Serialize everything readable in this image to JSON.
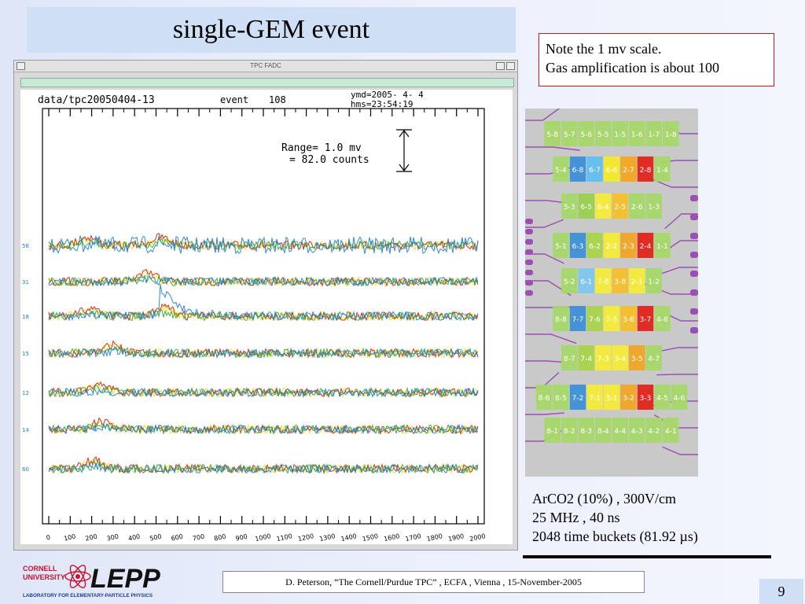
{
  "slide": {
    "title": "single-GEM event",
    "note_lines": [
      "Note the 1 mv scale.",
      "Gas amplification is about 100"
    ],
    "params_lines": [
      "ArCO2 (10%) , 300V/cm",
      "25 MHz , 40 ns",
      "2048 time buckets  (81.92 µs)"
    ],
    "footer": "D. Peterson,  “The Cornell/Purdue TPC” ,  ECFA , Vienna , 15-November-2005",
    "page_number": "9",
    "logo": {
      "top": "CORNELL",
      "mid": "UNIVERSITY",
      "brand": "LEPP",
      "sub": "LABORATORY FOR ELEMENTARY-PARTICLE PHYSICS"
    }
  },
  "window": {
    "title": "TPC FADC"
  },
  "chart_data": {
    "type": "line",
    "header": {
      "file": "data/tpc20050404-13",
      "event_label": "event",
      "event_number": "108",
      "ymd": "ymd=2005- 4- 4",
      "hms": "hms=23:54:19"
    },
    "range_annotation": [
      "Range=   1.0 mv",
      "=   82.0 counts"
    ],
    "xlim": [
      0,
      2000
    ],
    "x_ticks": [
      "0",
      "100",
      "200",
      "300",
      "400",
      "500",
      "600",
      "700",
      "800",
      "900",
      "1000",
      "1100",
      "1200",
      "1300",
      "1400",
      "1500",
      "1600",
      "1700",
      "1800",
      "1900",
      "2000"
    ],
    "channel_groups": [
      {
        "label": "58",
        "pulse_x": [
          180,
          520
        ]
      },
      {
        "label": "31",
        "pulse_x": [
          460
        ]
      },
      {
        "label": "18",
        "pulse_x": [
          200,
          540
        ]
      },
      {
        "label": "15",
        "pulse_x": [
          300
        ]
      },
      {
        "label": "12",
        "pulse_x": [
          230
        ]
      },
      {
        "label": "14",
        "pulse_x": [
          250
        ]
      },
      {
        "label": "60",
        "pulse_x": [
          210
        ]
      }
    ],
    "series_colors": [
      "#d81e05",
      "#f0e020",
      "#37a632",
      "#1e7fd8"
    ]
  },
  "pads": {
    "rows": [
      [
        "5-8",
        "5-7",
        "5-6",
        "5-5",
        "1-5",
        "1-6",
        "1-7",
        "1-8"
      ],
      [
        "5-4",
        "6-8",
        "6-7",
        "6-6",
        "2-7",
        "2-8",
        "1-4"
      ],
      [
        "5-3",
        "6-5",
        "6-4",
        "2-5",
        "2-6",
        "1-3"
      ],
      [
        "5-1",
        "6-3",
        "6-2",
        "2-2",
        "2-3",
        "2-4",
        "1-1"
      ],
      [
        "5-2",
        "6-1",
        "7-8",
        "3-8",
        "2-1",
        "1-2"
      ],
      [
        "8-8",
        "7-7",
        "7-6",
        "7-5",
        "3-6",
        "3-7",
        "4-8"
      ],
      [
        "8-7",
        "7-4",
        "7-3",
        "3-4",
        "3-5",
        "4-7"
      ],
      [
        "8-6",
        "8-5",
        "7-2",
        "7-1",
        "3-1",
        "3-2",
        "3-3",
        "4-5",
        "4-6"
      ],
      [
        "8-1",
        "8-2",
        "8-3",
        "8-4",
        "4-4",
        "4-3",
        "4-2",
        "4-1"
      ]
    ]
  }
}
